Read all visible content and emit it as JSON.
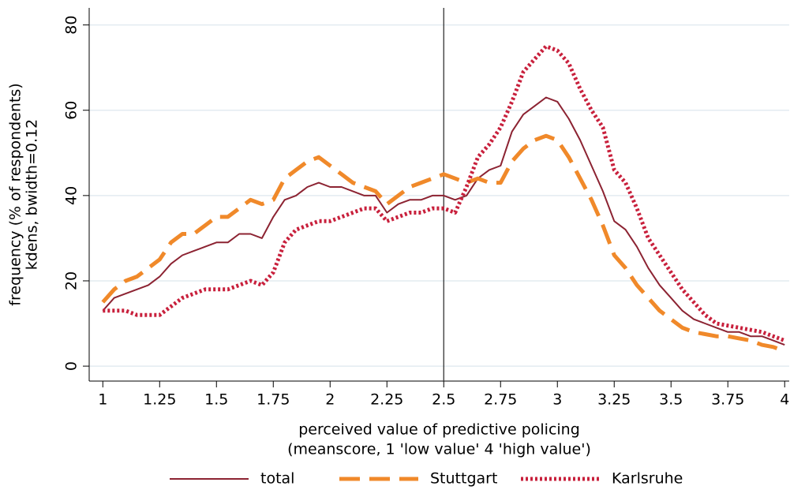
{
  "chart_data": {
    "type": "line",
    "ylabel": [
      "frequency (% of respondents)",
      "kdens, bwidth=0.12"
    ],
    "xlabel": [
      "perceived value of predictive policing",
      "(meanscore, 1 'low value' 4 'high value')"
    ],
    "x": [
      1,
      1.05,
      1.1,
      1.15,
      1.2,
      1.25,
      1.3,
      1.35,
      1.4,
      1.45,
      1.5,
      1.55,
      1.6,
      1.65,
      1.7,
      1.75,
      1.8,
      1.85,
      1.9,
      1.95,
      2,
      2.05,
      2.1,
      2.15,
      2.2,
      2.25,
      2.3,
      2.35,
      2.4,
      2.45,
      2.5,
      2.55,
      2.6,
      2.65,
      2.7,
      2.75,
      2.8,
      2.85,
      2.9,
      2.95,
      3,
      3.05,
      3.1,
      3.15,
      3.2,
      3.25,
      3.3,
      3.35,
      3.4,
      3.45,
      3.5,
      3.55,
      3.6,
      3.65,
      3.7,
      3.75,
      3.8,
      3.85,
      3.9,
      3.95,
      4
    ],
    "series": [
      {
        "name": "total",
        "color": "#8c2332",
        "style": "solid",
        "width": 2,
        "values": [
          13,
          16,
          17,
          18,
          19,
          21,
          24,
          26,
          27,
          28,
          29,
          29,
          31,
          31,
          30,
          35,
          39,
          40,
          42,
          43,
          42,
          42,
          41,
          40,
          40,
          36,
          38,
          39,
          39,
          40,
          40,
          39,
          40,
          44,
          46,
          47,
          55,
          59,
          61,
          63,
          62,
          58,
          53,
          47,
          41,
          34,
          32,
          28,
          23,
          19,
          16,
          13,
          11,
          10,
          9,
          8,
          8,
          7,
          7,
          6,
          5
        ]
      },
      {
        "name": "Stuttgart",
        "color": "#f0892a",
        "style": "dashed",
        "width": 5,
        "values": [
          15,
          18,
          20,
          21,
          23,
          25,
          29,
          31,
          31,
          33,
          35,
          35,
          37,
          39,
          38,
          39,
          44,
          46,
          48,
          49,
          47,
          45,
          43,
          42,
          41,
          38,
          40,
          42,
          43,
          44,
          45,
          44,
          43,
          44,
          43,
          43,
          48,
          51,
          53,
          54,
          53,
          49,
          44,
          39,
          33,
          26,
          23,
          19,
          16,
          13,
          11,
          9,
          8,
          7.5,
          7,
          7,
          6.5,
          6,
          5,
          4.5,
          3.5
        ]
      },
      {
        "name": "Karlsruhe",
        "color": "#c8203c",
        "style": "dotted",
        "width": 5,
        "values": [
          13,
          13,
          13,
          12,
          12,
          12,
          14,
          16,
          17,
          18,
          18,
          18,
          19,
          20,
          19,
          22,
          29,
          32,
          33,
          34,
          34,
          35,
          36,
          37,
          37,
          34,
          35,
          36,
          36,
          37,
          37,
          36,
          42,
          49,
          52,
          56,
          62,
          69,
          72,
          75,
          74,
          71,
          65,
          60,
          56,
          46,
          43,
          37,
          30,
          26,
          22,
          18,
          15,
          12,
          10,
          9.5,
          9,
          8.5,
          8,
          7,
          6
        ]
      }
    ],
    "xlim": [
      0.94,
      4.02
    ],
    "xticks": [
      1,
      1.25,
      1.5,
      1.75,
      2,
      2.25,
      2.5,
      2.75,
      3,
      3.25,
      3.5,
      3.75,
      4
    ],
    "ylim": [
      -3.5,
      84
    ],
    "yticks": [
      0,
      20,
      40,
      60,
      80
    ],
    "xline": 2.5,
    "grid": true
  }
}
